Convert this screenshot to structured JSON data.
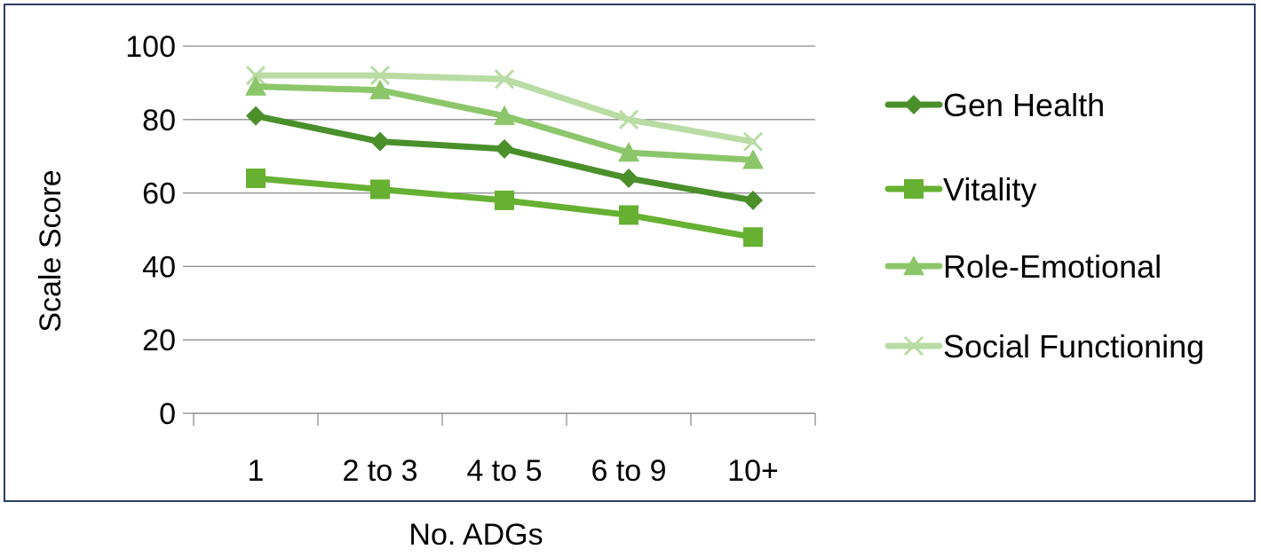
{
  "chart_data": {
    "type": "line",
    "title": "",
    "xlabel": "No. ADGs",
    "ylabel": "Scale Score",
    "categories": [
      "1",
      "2 to 3",
      "4 to 5",
      "6 to 9",
      "10+"
    ],
    "ylim": [
      0,
      100
    ],
    "yticks": [
      "0",
      "20",
      "40",
      "60",
      "80",
      "100"
    ],
    "grid": "horizontal",
    "legend_position": "right",
    "series": [
      {
        "name": "Gen Health",
        "values": [
          81,
          74,
          72,
          64,
          58
        ],
        "color": "#4a8f2a",
        "marker": "diamond"
      },
      {
        "name": "Vitality",
        "values": [
          64,
          61,
          58,
          54,
          48
        ],
        "color": "#66b032",
        "marker": "square"
      },
      {
        "name": "Role-Emotional",
        "values": [
          89,
          88,
          81,
          71,
          69
        ],
        "color": "#8cc66a",
        "marker": "triangle"
      },
      {
        "name": "Social Functioning",
        "values": [
          92,
          92,
          91,
          80,
          74
        ],
        "color": "#b8dca3",
        "marker": "x"
      }
    ]
  }
}
